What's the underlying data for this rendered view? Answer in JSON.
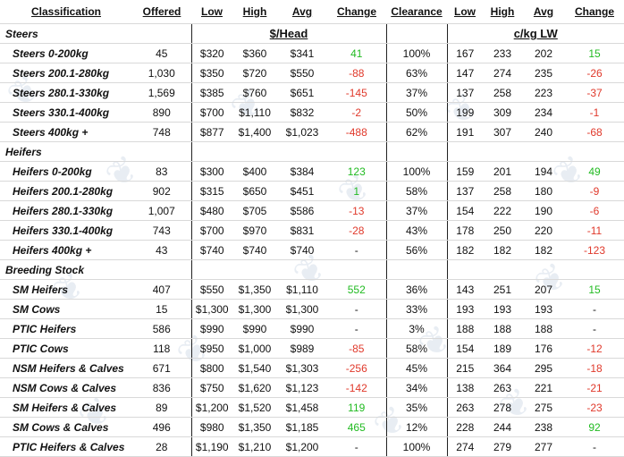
{
  "headers": {
    "classification": "Classification",
    "offered": "Offered",
    "low": "Low",
    "high": "High",
    "avg": "Avg",
    "change": "Change",
    "clearance": "Clearance",
    "low2": "Low",
    "high2": "High",
    "avg2": "Avg",
    "change2": "Change"
  },
  "unit_head": "$/Head",
  "unit_lw": "c/kg LW",
  "sections": [
    {
      "title": "Steers",
      "rows": [
        {
          "name": "Steers 0-200kg",
          "offered": "45",
          "low": "$320",
          "high": "$360",
          "avg": "$341",
          "change": "41",
          "clearance": "100%",
          "low2": "167",
          "high2": "233",
          "avg2": "202",
          "change2": "15"
        },
        {
          "name": "Steers 200.1-280kg",
          "offered": "1,030",
          "low": "$350",
          "high": "$720",
          "avg": "$550",
          "change": "-88",
          "clearance": "63%",
          "low2": "147",
          "high2": "274",
          "avg2": "235",
          "change2": "-26"
        },
        {
          "name": "Steers 280.1-330kg",
          "offered": "1,569",
          "low": "$385",
          "high": "$760",
          "avg": "$651",
          "change": "-145",
          "clearance": "37%",
          "low2": "137",
          "high2": "258",
          "avg2": "223",
          "change2": "-37"
        },
        {
          "name": "Steers 330.1-400kg",
          "offered": "890",
          "low": "$700",
          "high": "$1,110",
          "avg": "$832",
          "change": "-2",
          "clearance": "50%",
          "low2": "199",
          "high2": "309",
          "avg2": "234",
          "change2": "-1"
        },
        {
          "name": "Steers 400kg +",
          "offered": "748",
          "low": "$877",
          "high": "$1,400",
          "avg": "$1,023",
          "change": "-488",
          "clearance": "62%",
          "low2": "191",
          "high2": "307",
          "avg2": "240",
          "change2": "-68"
        }
      ]
    },
    {
      "title": "Heifers",
      "rows": [
        {
          "name": "Heifers 0-200kg",
          "offered": "83",
          "low": "$300",
          "high": "$400",
          "avg": "$384",
          "change": "123",
          "clearance": "100%",
          "low2": "159",
          "high2": "201",
          "avg2": "194",
          "change2": "49"
        },
        {
          "name": "Heifers 200.1-280kg",
          "offered": "902",
          "low": "$315",
          "high": "$650",
          "avg": "$451",
          "change": "1",
          "clearance": "58%",
          "low2": "137",
          "high2": "258",
          "avg2": "180",
          "change2": "-9"
        },
        {
          "name": "Heifers 280.1-330kg",
          "offered": "1,007",
          "low": "$480",
          "high": "$705",
          "avg": "$586",
          "change": "-13",
          "clearance": "37%",
          "low2": "154",
          "high2": "222",
          "avg2": "190",
          "change2": "-6"
        },
        {
          "name": "Heifers 330.1-400kg",
          "offered": "743",
          "low": "$700",
          "high": "$970",
          "avg": "$831",
          "change": "-28",
          "clearance": "43%",
          "low2": "178",
          "high2": "250",
          "avg2": "220",
          "change2": "-11"
        },
        {
          "name": "Heifers 400kg +",
          "offered": "43",
          "low": "$740",
          "high": "$740",
          "avg": "$740",
          "change": "-",
          "clearance": "56%",
          "low2": "182",
          "high2": "182",
          "avg2": "182",
          "change2": "-123"
        }
      ]
    },
    {
      "title": "Breeding Stock",
      "rows": [
        {
          "name": "SM Heifers",
          "offered": "407",
          "low": "$550",
          "high": "$1,350",
          "avg": "$1,110",
          "change": "552",
          "clearance": "36%",
          "low2": "143",
          "high2": "251",
          "avg2": "207",
          "change2": "15"
        },
        {
          "name": "SM Cows",
          "offered": "15",
          "low": "$1,300",
          "high": "$1,300",
          "avg": "$1,300",
          "change": "-",
          "clearance": "33%",
          "low2": "193",
          "high2": "193",
          "avg2": "193",
          "change2": "-"
        },
        {
          "name": "PTIC Heifers",
          "offered": "586",
          "low": "$990",
          "high": "$990",
          "avg": "$990",
          "change": "-",
          "clearance": "3%",
          "low2": "188",
          "high2": "188",
          "avg2": "188",
          "change2": "-"
        },
        {
          "name": "PTIC Cows",
          "offered": "118",
          "low": "$950",
          "high": "$1,000",
          "avg": "$989",
          "change": "-85",
          "clearance": "58%",
          "low2": "154",
          "high2": "189",
          "avg2": "176",
          "change2": "-12"
        },
        {
          "name": "NSM Heifers & Calves",
          "offered": "671",
          "low": "$800",
          "high": "$1,540",
          "avg": "$1,303",
          "change": "-256",
          "clearance": "45%",
          "low2": "215",
          "high2": "364",
          "avg2": "295",
          "change2": "-18"
        },
        {
          "name": "NSM Cows & Calves",
          "offered": "836",
          "low": "$750",
          "high": "$1,620",
          "avg": "$1,123",
          "change": "-142",
          "clearance": "34%",
          "low2": "138",
          "high2": "263",
          "avg2": "221",
          "change2": "-21"
        },
        {
          "name": "SM Heifers & Calves",
          "offered": "89",
          "low": "$1,200",
          "high": "$1,520",
          "avg": "$1,458",
          "change": "119",
          "clearance": "35%",
          "low2": "263",
          "high2": "278",
          "avg2": "275",
          "change2": "-23"
        },
        {
          "name": "SM Cows & Calves",
          "offered": "496",
          "low": "$980",
          "high": "$1,350",
          "avg": "$1,185",
          "change": "465",
          "clearance": "12%",
          "low2": "228",
          "high2": "244",
          "avg2": "238",
          "change2": "92"
        },
        {
          "name": "PTIC Heifers & Calves",
          "offered": "28",
          "low": "$1,190",
          "high": "$1,210",
          "avg": "$1,200",
          "change": "-",
          "clearance": "100%",
          "low2": "274",
          "high2": "279",
          "avg2": "277",
          "change2": "-"
        }
      ]
    }
  ],
  "colors": {
    "positive": "#22bb22",
    "negative": "#e0392b"
  }
}
